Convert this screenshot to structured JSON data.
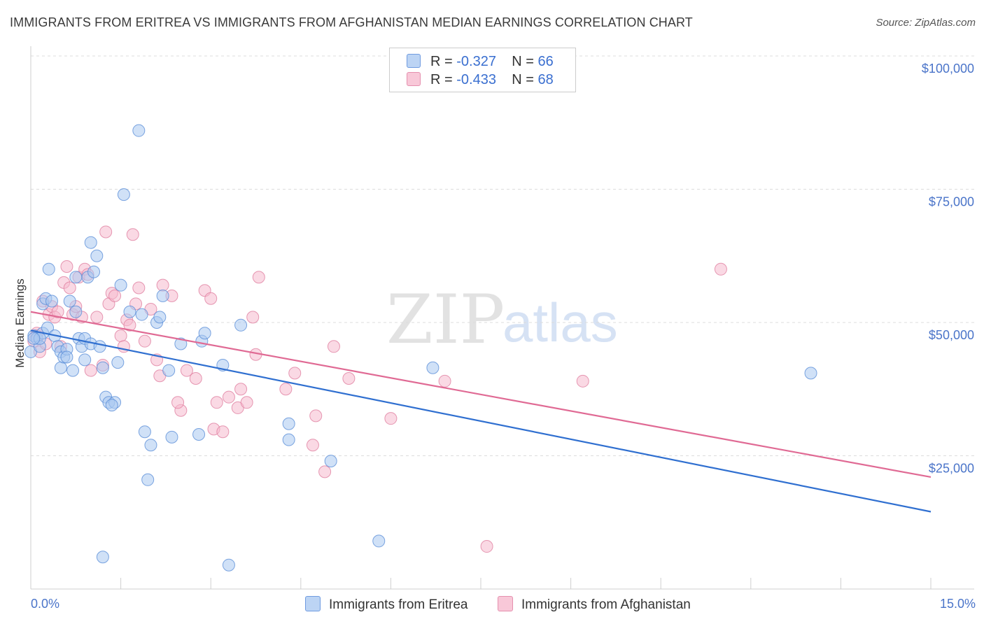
{
  "header": {
    "title": "IMMIGRANTS FROM ERITREA VS IMMIGRANTS FROM AFGHANISTAN MEDIAN EARNINGS CORRELATION CHART",
    "source": "Source: ZipAtlas.com"
  },
  "legend": {
    "row1": {
      "r_label": "R =",
      "r_value": "-0.327",
      "n_label": "N =",
      "n_value": "66"
    },
    "row2": {
      "r_label": "R =",
      "r_value": "-0.433",
      "n_label": "N =",
      "n_value": "68"
    }
  },
  "watermark": {
    "zip": "ZIP",
    "atlas": "atlas"
  },
  "colors": {
    "eritrea_fill": "#a9c8f0",
    "eritrea_stroke": "#5b8fd8",
    "eritrea_line": "#2f6fd0",
    "afghanistan_fill": "#f6b9cd",
    "afghanistan_stroke": "#e07fa0",
    "afghanistan_line": "#e06a94"
  },
  "chart_data": {
    "type": "scatter",
    "title": "IMMIGRANTS FROM ERITREA VS IMMIGRANTS FROM AFGHANISTAN MEDIAN EARNINGS CORRELATION CHART",
    "xlabel": "",
    "ylabel": "Median Earnings",
    "xlim": [
      0,
      15
    ],
    "ylim": [
      0,
      100000
    ],
    "x_tick_labels": {
      "left": "0.0%",
      "right": "15.0%"
    },
    "y_ticks": [
      25000,
      50000,
      75000,
      100000
    ],
    "y_tick_labels": [
      "$25,000",
      "$50,000",
      "$75,000",
      "$100,000"
    ],
    "series": [
      {
        "name": "Immigrants from Eritrea",
        "trend": {
          "x0": 0,
          "y0": 48500,
          "x1": 15,
          "y1": 14500
        },
        "points": [
          [
            0.0,
            44500
          ],
          [
            0.05,
            47500
          ],
          [
            0.1,
            47000
          ],
          [
            0.15,
            45500
          ],
          [
            0.2,
            48000
          ],
          [
            0.2,
            53500
          ],
          [
            0.25,
            54500
          ],
          [
            0.28,
            49000
          ],
          [
            0.3,
            60000
          ],
          [
            0.35,
            54000
          ],
          [
            0.4,
            47500
          ],
          [
            0.45,
            45500
          ],
          [
            0.5,
            44500
          ],
          [
            0.5,
            41500
          ],
          [
            0.55,
            43500
          ],
          [
            0.6,
            45000
          ],
          [
            0.65,
            54000
          ],
          [
            0.7,
            41000
          ],
          [
            0.75,
            52000
          ],
          [
            0.75,
            58500
          ],
          [
            0.8,
            47000
          ],
          [
            0.85,
            45500
          ],
          [
            0.9,
            47000
          ],
          [
            0.95,
            58500
          ],
          [
            1.0,
            46000
          ],
          [
            1.0,
            65000
          ],
          [
            1.05,
            59500
          ],
          [
            1.1,
            62500
          ],
          [
            1.15,
            45500
          ],
          [
            1.2,
            41500
          ],
          [
            1.25,
            36000
          ],
          [
            1.3,
            35000
          ],
          [
            1.4,
            35000
          ],
          [
            1.45,
            42500
          ],
          [
            1.5,
            57000
          ],
          [
            1.55,
            74000
          ],
          [
            1.65,
            52000
          ],
          [
            1.8,
            86000
          ],
          [
            1.85,
            51500
          ],
          [
            1.9,
            29500
          ],
          [
            1.95,
            20500
          ],
          [
            2.0,
            27000
          ],
          [
            2.1,
            50000
          ],
          [
            2.2,
            55000
          ],
          [
            2.3,
            41000
          ],
          [
            2.35,
            28500
          ],
          [
            2.5,
            46000
          ],
          [
            2.8,
            29000
          ],
          [
            2.85,
            46500
          ],
          [
            2.9,
            48000
          ],
          [
            3.2,
            42000
          ],
          [
            3.5,
            49500
          ],
          [
            4.3,
            31000
          ],
          [
            4.3,
            28000
          ],
          [
            5.0,
            24000
          ],
          [
            5.8,
            9000
          ],
          [
            6.7,
            41500
          ],
          [
            13.0,
            40500
          ],
          [
            1.2,
            6000
          ],
          [
            3.3,
            4500
          ],
          [
            0.15,
            47000
          ],
          [
            0.9,
            43000
          ],
          [
            1.35,
            34500
          ],
          [
            0.6,
            43500
          ],
          [
            2.15,
            51000
          ],
          [
            0.05,
            47000
          ]
        ]
      },
      {
        "name": "Immigrants from Afghanistan",
        "trend": {
          "x0": 0,
          "y0": 52000,
          "x1": 15,
          "y1": 21000
        },
        "points": [
          [
            0.05,
            46500
          ],
          [
            0.1,
            48000
          ],
          [
            0.15,
            44500
          ],
          [
            0.2,
            54000
          ],
          [
            0.25,
            46000
          ],
          [
            0.3,
            51500
          ],
          [
            0.35,
            53000
          ],
          [
            0.4,
            51000
          ],
          [
            0.45,
            52000
          ],
          [
            0.5,
            45500
          ],
          [
            0.55,
            57500
          ],
          [
            0.6,
            60500
          ],
          [
            0.65,
            56500
          ],
          [
            0.7,
            51500
          ],
          [
            0.75,
            53000
          ],
          [
            0.8,
            58500
          ],
          [
            0.85,
            51000
          ],
          [
            0.9,
            60000
          ],
          [
            0.95,
            59000
          ],
          [
            1.0,
            41000
          ],
          [
            1.1,
            51000
          ],
          [
            1.2,
            42000
          ],
          [
            1.25,
            67000
          ],
          [
            1.3,
            53500
          ],
          [
            1.35,
            55500
          ],
          [
            1.4,
            55000
          ],
          [
            1.5,
            47500
          ],
          [
            1.55,
            45500
          ],
          [
            1.6,
            50500
          ],
          [
            1.65,
            49500
          ],
          [
            1.7,
            66500
          ],
          [
            1.75,
            53500
          ],
          [
            1.8,
            56500
          ],
          [
            1.9,
            46500
          ],
          [
            2.0,
            52500
          ],
          [
            2.1,
            43000
          ],
          [
            2.15,
            40000
          ],
          [
            2.2,
            57000
          ],
          [
            2.35,
            55000
          ],
          [
            2.5,
            33500
          ],
          [
            2.6,
            41000
          ],
          [
            2.75,
            39500
          ],
          [
            2.9,
            56000
          ],
          [
            3.0,
            54500
          ],
          [
            3.05,
            30000
          ],
          [
            3.1,
            35000
          ],
          [
            3.2,
            29500
          ],
          [
            3.3,
            36000
          ],
          [
            3.45,
            34000
          ],
          [
            3.5,
            37500
          ],
          [
            3.6,
            35000
          ],
          [
            3.7,
            51000
          ],
          [
            3.75,
            44000
          ],
          [
            3.8,
            58500
          ],
          [
            4.25,
            37500
          ],
          [
            4.4,
            40500
          ],
          [
            4.7,
            27000
          ],
          [
            4.75,
            32500
          ],
          [
            4.9,
            22000
          ],
          [
            5.05,
            45500
          ],
          [
            5.3,
            39500
          ],
          [
            6.0,
            32000
          ],
          [
            6.9,
            39000
          ],
          [
            7.6,
            8000
          ],
          [
            9.2,
            39000
          ],
          [
            11.5,
            60000
          ],
          [
            2.45,
            35000
          ],
          [
            0.1,
            47500
          ]
        ]
      }
    ]
  },
  "bottom_legend": {
    "eritrea": "Immigrants from Eritrea",
    "afghanistan": "Immigrants from Afghanistan"
  }
}
